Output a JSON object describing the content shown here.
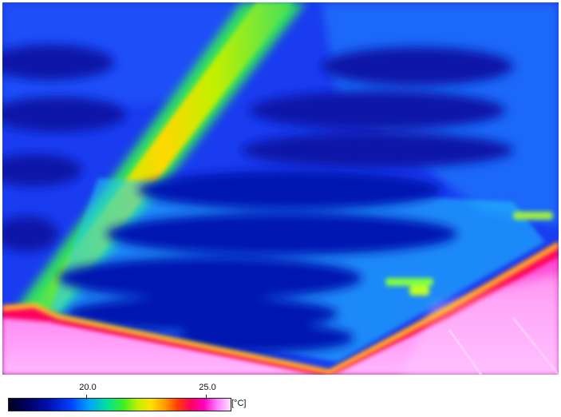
{
  "legend": {
    "ticks": [
      {
        "label": "20.0"
      },
      {
        "label": "25.0"
      }
    ],
    "unit": "[°C]"
  },
  "colors": {
    "cold": "#0a20d8",
    "cool_patch": "#0814b0",
    "mid": "#00c8ff",
    "warm_beam": "#f0e000",
    "hot_edge": "#ff0040",
    "hottest": "#ff70f0"
  }
}
